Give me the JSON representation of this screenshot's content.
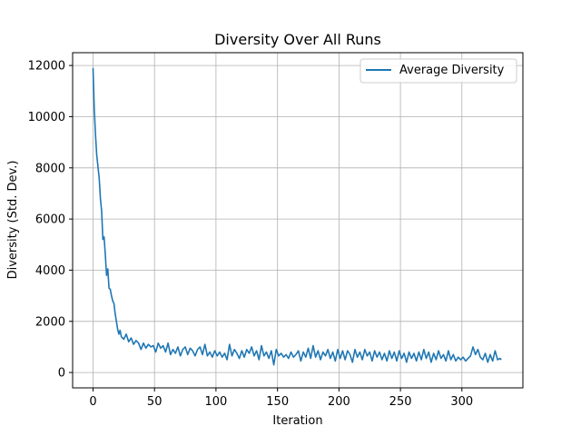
{
  "chart_data": {
    "type": "line",
    "title": "Diversity Over All Runs",
    "xlabel": "Iteration",
    "ylabel": "Diversity (Std. Dev.)",
    "xlim": [
      -16.6,
      349.6
    ],
    "ylim": [
      -600,
      12500
    ],
    "xticks": [
      0,
      50,
      100,
      150,
      200,
      250,
      300
    ],
    "yticks": [
      0,
      2000,
      4000,
      6000,
      8000,
      10000,
      12000
    ],
    "grid": true,
    "legend_position": "top-right",
    "colors": {
      "series": "#1f77b4",
      "grid": "#b0b0b0",
      "axis": "#000000"
    },
    "series": [
      {
        "name": "Average Diversity",
        "points": [
          [
            0,
            11900
          ],
          [
            1,
            10300
          ],
          [
            2,
            9300
          ],
          [
            3,
            8500
          ],
          [
            4,
            8050
          ],
          [
            5,
            7600
          ],
          [
            6,
            6800
          ],
          [
            7,
            6300
          ],
          [
            8,
            5200
          ],
          [
            9,
            5300
          ],
          [
            10,
            4600
          ],
          [
            11,
            3800
          ],
          [
            12,
            4050
          ],
          [
            13,
            3300
          ],
          [
            14,
            3250
          ],
          [
            15,
            3000
          ],
          [
            16,
            2800
          ],
          [
            17,
            2700
          ],
          [
            18,
            2300
          ],
          [
            19,
            2000
          ],
          [
            20,
            1700
          ],
          [
            21,
            1500
          ],
          [
            22,
            1650
          ],
          [
            23,
            1400
          ],
          [
            25,
            1300
          ],
          [
            27,
            1500
          ],
          [
            29,
            1200
          ],
          [
            31,
            1350
          ],
          [
            33,
            1100
          ],
          [
            35,
            1250
          ],
          [
            37,
            1150
          ],
          [
            39,
            900
          ],
          [
            41,
            1150
          ],
          [
            43,
            950
          ],
          [
            45,
            1100
          ],
          [
            47,
            1000
          ],
          [
            49,
            1050
          ],
          [
            51,
            800
          ],
          [
            53,
            1150
          ],
          [
            55,
            950
          ],
          [
            57,
            1050
          ],
          [
            59,
            800
          ],
          [
            61,
            1150
          ],
          [
            63,
            700
          ],
          [
            65,
            900
          ],
          [
            67,
            750
          ],
          [
            69,
            1000
          ],
          [
            71,
            650
          ],
          [
            73,
            900
          ],
          [
            75,
            1000
          ],
          [
            77,
            700
          ],
          [
            79,
            950
          ],
          [
            81,
            850
          ],
          [
            83,
            650
          ],
          [
            85,
            900
          ],
          [
            87,
            1000
          ],
          [
            89,
            700
          ],
          [
            91,
            1100
          ],
          [
            93,
            650
          ],
          [
            95,
            800
          ],
          [
            97,
            600
          ],
          [
            99,
            850
          ],
          [
            101,
            650
          ],
          [
            103,
            800
          ],
          [
            105,
            600
          ],
          [
            107,
            750
          ],
          [
            109,
            500
          ],
          [
            111,
            1100
          ],
          [
            113,
            650
          ],
          [
            115,
            900
          ],
          [
            117,
            750
          ],
          [
            119,
            550
          ],
          [
            121,
            850
          ],
          [
            123,
            600
          ],
          [
            125,
            900
          ],
          [
            127,
            750
          ],
          [
            129,
            1000
          ],
          [
            131,
            650
          ],
          [
            133,
            850
          ],
          [
            135,
            500
          ],
          [
            137,
            1050
          ],
          [
            139,
            650
          ],
          [
            141,
            800
          ],
          [
            143,
            550
          ],
          [
            145,
            850
          ],
          [
            147,
            300
          ],
          [
            149,
            900
          ],
          [
            151,
            650
          ],
          [
            153,
            750
          ],
          [
            155,
            600
          ],
          [
            157,
            700
          ],
          [
            159,
            550
          ],
          [
            161,
            800
          ],
          [
            163,
            600
          ],
          [
            165,
            700
          ],
          [
            167,
            850
          ],
          [
            169,
            450
          ],
          [
            171,
            800
          ],
          [
            173,
            600
          ],
          [
            175,
            950
          ],
          [
            177,
            550
          ],
          [
            179,
            1050
          ],
          [
            181,
            600
          ],
          [
            183,
            850
          ],
          [
            185,
            500
          ],
          [
            187,
            800
          ],
          [
            189,
            650
          ],
          [
            191,
            900
          ],
          [
            193,
            550
          ],
          [
            195,
            800
          ],
          [
            197,
            450
          ],
          [
            199,
            900
          ],
          [
            201,
            550
          ],
          [
            203,
            850
          ],
          [
            205,
            500
          ],
          [
            207,
            850
          ],
          [
            209,
            700
          ],
          [
            211,
            400
          ],
          [
            213,
            900
          ],
          [
            215,
            600
          ],
          [
            217,
            800
          ],
          [
            219,
            500
          ],
          [
            221,
            900
          ],
          [
            223,
            650
          ],
          [
            225,
            800
          ],
          [
            227,
            450
          ],
          [
            229,
            850
          ],
          [
            231,
            600
          ],
          [
            233,
            800
          ],
          [
            235,
            500
          ],
          [
            237,
            750
          ],
          [
            239,
            450
          ],
          [
            241,
            850
          ],
          [
            243,
            550
          ],
          [
            245,
            800
          ],
          [
            247,
            450
          ],
          [
            249,
            850
          ],
          [
            251,
            550
          ],
          [
            253,
            750
          ],
          [
            255,
            400
          ],
          [
            257,
            800
          ],
          [
            259,
            550
          ],
          [
            261,
            750
          ],
          [
            263,
            450
          ],
          [
            265,
            800
          ],
          [
            267,
            500
          ],
          [
            269,
            900
          ],
          [
            271,
            550
          ],
          [
            273,
            800
          ],
          [
            275,
            400
          ],
          [
            277,
            750
          ],
          [
            279,
            500
          ],
          [
            281,
            850
          ],
          [
            283,
            550
          ],
          [
            285,
            700
          ],
          [
            287,
            450
          ],
          [
            289,
            850
          ],
          [
            291,
            500
          ],
          [
            293,
            700
          ],
          [
            295,
            450
          ],
          [
            297,
            600
          ],
          [
            299,
            500
          ],
          [
            301,
            600
          ],
          [
            303,
            450
          ],
          [
            305,
            550
          ],
          [
            307,
            650
          ],
          [
            309,
            1000
          ],
          [
            311,
            700
          ],
          [
            313,
            900
          ],
          [
            315,
            600
          ],
          [
            317,
            500
          ],
          [
            319,
            750
          ],
          [
            321,
            400
          ],
          [
            323,
            700
          ],
          [
            325,
            450
          ],
          [
            327,
            850
          ],
          [
            329,
            500
          ],
          [
            331,
            550
          ],
          [
            332,
            500
          ]
        ]
      }
    ]
  }
}
